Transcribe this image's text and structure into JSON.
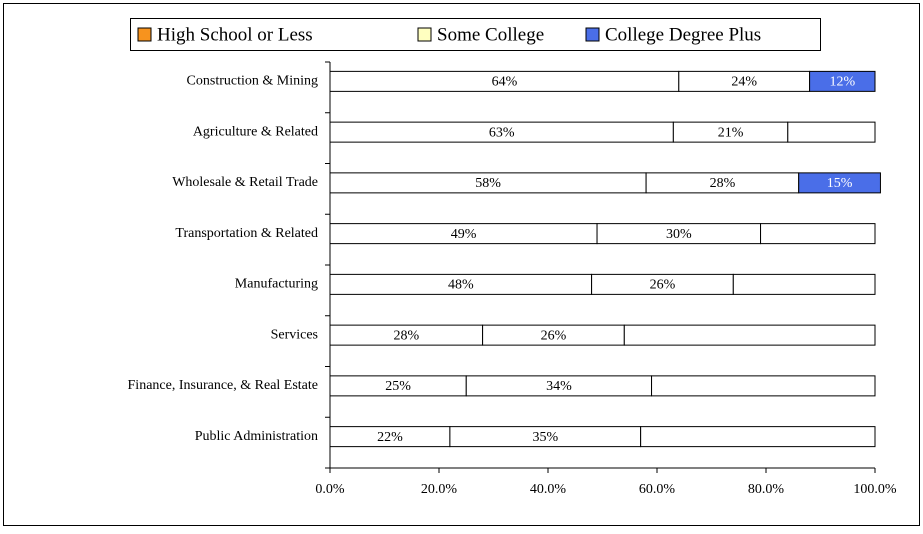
{
  "chart_data": {
    "type": "stacked-hbar",
    "categories": [
      "Construction & Mining",
      "Agriculture & Related",
      "Wholesale & Retail Trade",
      "Transportation & Related",
      "Manufacturing",
      "Services",
      "Finance, Insurance, & Real Estate",
      "Public Administration"
    ],
    "series": [
      {
        "name": "High School or Less",
        "color": "#f7931e",
        "bar_fills": [
          "#ffffff",
          "#ffffff",
          "#ffffff",
          "#ffffff",
          "#ffffff",
          "#ffffff",
          "#ffffff",
          "#ffffff"
        ],
        "values": [
          64,
          63,
          58,
          49,
          48,
          28,
          25,
          22
        ],
        "value_labels": [
          "64%",
          "63%",
          "58%",
          "49%",
          "48%",
          "28%",
          "25%",
          "22%"
        ]
      },
      {
        "name": "Some College",
        "color": "#ffffc0",
        "bar_fills": [
          "#ffffff",
          "#ffffff",
          "#ffffff",
          "#ffffff",
          "#ffffff",
          "#ffffff",
          "#ffffff",
          "#ffffff"
        ],
        "values": [
          24,
          21,
          28,
          30,
          26,
          26,
          34,
          35
        ],
        "value_labels": [
          "24%",
          "21%",
          "28%",
          "30%",
          "26%",
          "26%",
          "34%",
          "35%"
        ]
      },
      {
        "name": "College Degree Plus",
        "color": "#4a6ee8",
        "bar_fills": [
          "#4a6ee8",
          "#ffffff",
          "#4a6ee8",
          "#ffffff",
          "#ffffff",
          "#ffffff",
          "#ffffff",
          "#ffffff"
        ],
        "values": [
          12,
          16,
          15,
          21,
          26,
          46,
          41,
          43
        ],
        "value_labels": [
          "12%",
          null,
          "15%",
          null,
          null,
          null,
          null,
          null
        ]
      }
    ],
    "xlim": [
      0,
      100
    ],
    "xticks": [
      {
        "value": 0,
        "label": "0.0%"
      },
      {
        "value": 20,
        "label": "20.0%"
      },
      {
        "value": 40,
        "label": "40.0%"
      },
      {
        "value": 60,
        "label": "60.0%"
      },
      {
        "value": 80,
        "label": "80.0%"
      },
      {
        "value": 100,
        "label": "100.0%"
      }
    ]
  }
}
